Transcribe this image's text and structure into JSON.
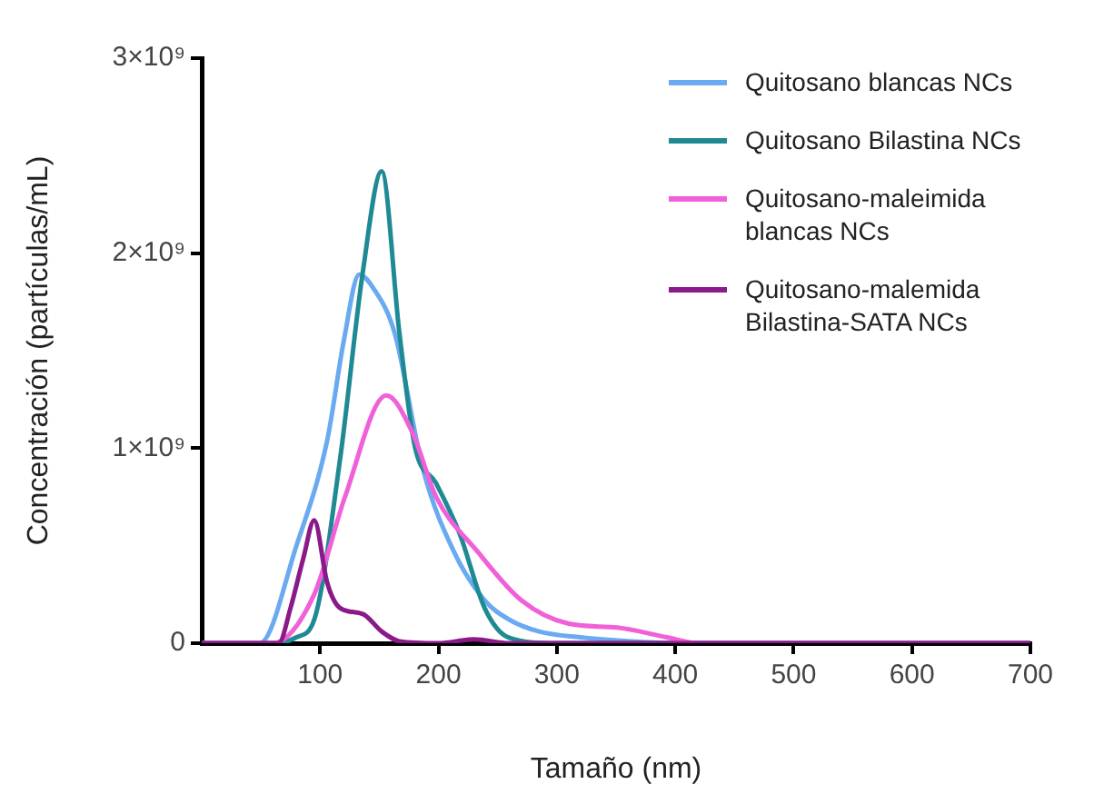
{
  "chart_data": {
    "type": "line",
    "xlabel": "Tamaño (nm)",
    "ylabel": "Concentración (partículas/mL)",
    "xlim": [
      0,
      700
    ],
    "xticks": [
      100,
      200,
      300,
      400,
      500,
      600,
      700
    ],
    "ylim": [
      0,
      3000000000
    ],
    "yticks": [
      {
        "value": 0,
        "label": "0"
      },
      {
        "value": 1000000000,
        "label": "1×10⁹"
      },
      {
        "value": 2000000000,
        "label": "2×10⁹"
      },
      {
        "value": 3000000000,
        "label": "3×10⁹"
      }
    ],
    "grid": false,
    "legend": "top right",
    "series": [
      {
        "name": "Quitosano blancas NCs",
        "color": "#6aaaf0",
        "x": [
          0,
          40,
          49,
          80,
          106,
          120,
          133,
          145,
          163,
          187,
          213,
          239,
          260,
          285,
          320,
          360,
          400,
          700
        ],
        "values": [
          0,
          0,
          0,
          500000000,
          1040000000,
          1550000000,
          1890000000,
          1820000000,
          1590000000,
          890000000,
          470000000,
          220000000,
          120000000,
          60000000,
          30000000,
          10000000,
          0,
          0
        ]
      },
      {
        "name": "Quitosano Bilastina NCs",
        "color": "#1f8a94",
        "x": [
          0,
          55,
          64,
          80,
          95,
          117,
          136,
          152,
          167,
          180,
          198,
          218,
          239,
          259,
          300,
          700
        ],
        "values": [
          0,
          0,
          0,
          30000000,
          120000000,
          950000000,
          1900000000,
          2420000000,
          1590000000,
          1010000000,
          820000000,
          560000000,
          180000000,
          30000000,
          0,
          0
        ]
      },
      {
        "name": "Quitosano-maleimida blancas NCs",
        "color": "#f060d8",
        "x": [
          0,
          50,
          60,
          95,
          121,
          156,
          178,
          198,
          233,
          270,
          310,
          351,
          393,
          420,
          700
        ],
        "values": [
          0,
          0,
          0,
          250000000,
          750000000,
          1270000000,
          1080000000,
          750000000,
          470000000,
          220000000,
          100000000,
          80000000,
          30000000,
          0,
          0
        ]
      },
      {
        "name": "Quitosano-malemida Bilastina-SATA NCs",
        "color": "#8a1a8a",
        "x": [
          0,
          65,
          75,
          86,
          95,
          106,
          117,
          136,
          152,
          167,
          200,
          230,
          260,
          700
        ],
        "values": [
          0,
          0,
          180000000,
          440000000,
          630000000,
          310000000,
          180000000,
          150000000,
          60000000,
          10000000,
          0,
          20000000,
          0,
          0
        ]
      }
    ]
  }
}
